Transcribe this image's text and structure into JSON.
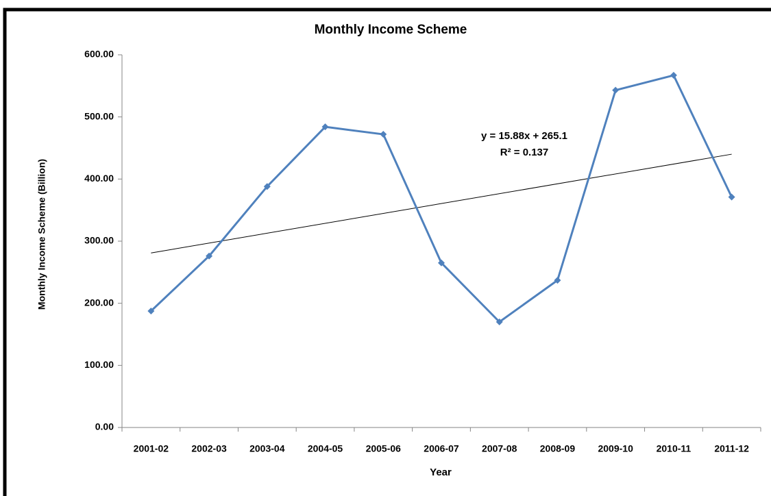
{
  "chart_data": {
    "type": "line",
    "title": "Monthly Income Scheme",
    "x_label": "Year",
    "y_label": "Monthly Income Scheme (Billion)",
    "categories": [
      "2001-02",
      "2002-03",
      "2003-04",
      "2004-05",
      "2005-06",
      "2006-07",
      "2007-08",
      "2008-09",
      "2009-10",
      "2010-11",
      "2011-12"
    ],
    "series": [
      {
        "name": "Monthly Income Scheme",
        "color": "#4f81bd",
        "values": [
          187.5,
          276,
          388,
          484,
          472,
          265,
          170,
          237,
          543,
          567,
          371
        ]
      }
    ],
    "trendline": {
      "start": 281,
      "end": 440,
      "color": "#000000",
      "equation": "y = 15.88x + 265.1",
      "r_squared": "R² = 0.137"
    },
    "ylim": [
      0,
      600
    ],
    "yticks": [
      {
        "value": 0,
        "label": "0.00"
      },
      {
        "value": 100,
        "label": "100.00"
      },
      {
        "value": 200,
        "label": "200.00"
      },
      {
        "value": 300,
        "label": "300.00"
      },
      {
        "value": 400,
        "label": "400.00"
      },
      {
        "value": 500,
        "label": "500.00"
      },
      {
        "value": 600,
        "label": "600.00"
      }
    ],
    "grid": false
  }
}
